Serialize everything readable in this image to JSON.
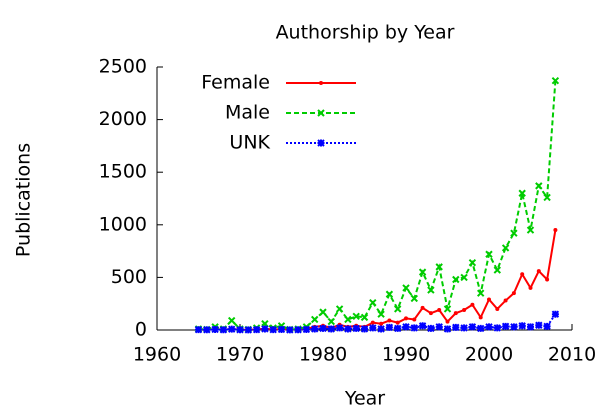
{
  "chart_data": {
    "type": "line",
    "title": "Authorship by Year",
    "x_label": "Year",
    "y_label": "Publications",
    "x": [
      1965,
      1966,
      1967,
      1968,
      1969,
      1970,
      1971,
      1972,
      1973,
      1974,
      1975,
      1976,
      1977,
      1978,
      1979,
      1980,
      1981,
      1982,
      1983,
      1984,
      1985,
      1986,
      1987,
      1988,
      1989,
      1990,
      1991,
      1992,
      1993,
      1994,
      1995,
      1996,
      1997,
      1998,
      1999,
      2000,
      2001,
      2002,
      2003,
      2004,
      2005,
      2006,
      2007,
      2008
    ],
    "series": [
      {
        "name": "Female",
        "color": "#ff0000",
        "dash": "solid",
        "values": [
          5,
          2,
          8,
          3,
          10,
          4,
          2,
          6,
          12,
          5,
          8,
          3,
          5,
          10,
          30,
          40,
          20,
          50,
          30,
          40,
          30,
          70,
          60,
          90,
          70,
          110,
          100,
          210,
          160,
          190,
          80,
          160,
          190,
          240,
          120,
          290,
          200,
          280,
          350,
          530,
          400,
          560,
          480,
          950
        ]
      },
      {
        "name": "Male",
        "color": "#00cc00",
        "dash": "dashed",
        "values": [
          10,
          5,
          30,
          10,
          90,
          10,
          5,
          20,
          60,
          20,
          40,
          5,
          10,
          30,
          100,
          170,
          80,
          200,
          100,
          130,
          120,
          260,
          150,
          340,
          200,
          400,
          300,
          550,
          380,
          600,
          200,
          480,
          500,
          640,
          350,
          720,
          570,
          780,
          920,
          1300,
          950,
          1370,
          1260,
          2370
        ]
      },
      {
        "name": "UNK",
        "color": "#0000ff",
        "dash": "dotted",
        "values": [
          3,
          2,
          5,
          2,
          8,
          2,
          1,
          3,
          10,
          3,
          5,
          1,
          2,
          5,
          10,
          15,
          10,
          20,
          10,
          15,
          10,
          20,
          10,
          25,
          15,
          30,
          20,
          40,
          15,
          30,
          10,
          25,
          20,
          30,
          15,
          30,
          20,
          35,
          30,
          40,
          30,
          45,
          35,
          150
        ]
      }
    ],
    "xlim": [
      1960,
      2010
    ],
    "ylim": [
      0,
      2500
    ],
    "xticks": [
      1960,
      1970,
      1980,
      1990,
      2000,
      2010
    ],
    "yticks": [
      0,
      500,
      1000,
      1500,
      2000,
      2500
    ],
    "legend": "top-left",
    "grid": false
  }
}
